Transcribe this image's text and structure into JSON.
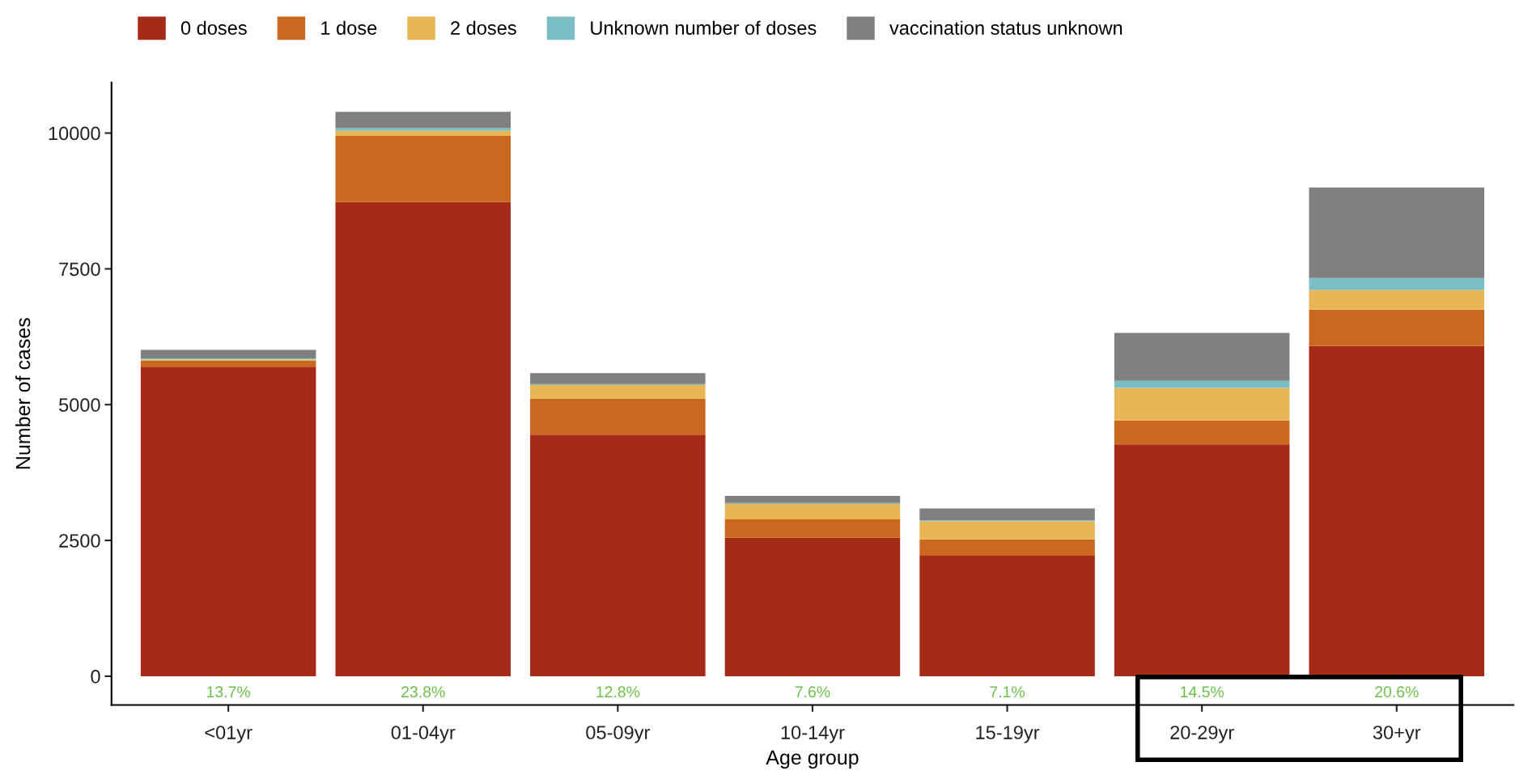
{
  "chart_data": {
    "type": "bar",
    "stacked": true,
    "xlabel": "Age group",
    "ylabel": "Number of cases",
    "categories": [
      "<01yr",
      "01-04yr",
      "05-09yr",
      "10-14yr",
      "15-19yr",
      "20-29yr",
      "30+yr"
    ],
    "series": [
      {
        "name": "0 doses",
        "color": "#a52a18",
        "values": [
          5700,
          8730,
          4450,
          2550,
          2220,
          4270,
          6080
        ]
      },
      {
        "name": "1 dose",
        "color": "#cb6820",
        "values": [
          110,
          1220,
          660,
          340,
          300,
          440,
          670
        ]
      },
      {
        "name": "2 doses",
        "color": "#e8b655",
        "values": [
          20,
          90,
          250,
          280,
          330,
          600,
          360
        ]
      },
      {
        "name": "Unknown number of doses",
        "color": "#7bbfc4",
        "values": [
          20,
          50,
          20,
          20,
          20,
          130,
          220
        ]
      },
      {
        "name": "vaccination status unknown",
        "color": "#808080",
        "values": [
          160,
          300,
          200,
          130,
          220,
          880,
          1670
        ]
      }
    ],
    "ylim": [
      -530,
      10930
    ],
    "yticks": [
      0,
      2500,
      5000,
      7500,
      10000
    ],
    "grid": false,
    "legend": "top left",
    "annotations": [
      "13.7%",
      "23.8%",
      "12.8%",
      "7.6%",
      "7.1%",
      "14.5%",
      "20.6%"
    ]
  }
}
